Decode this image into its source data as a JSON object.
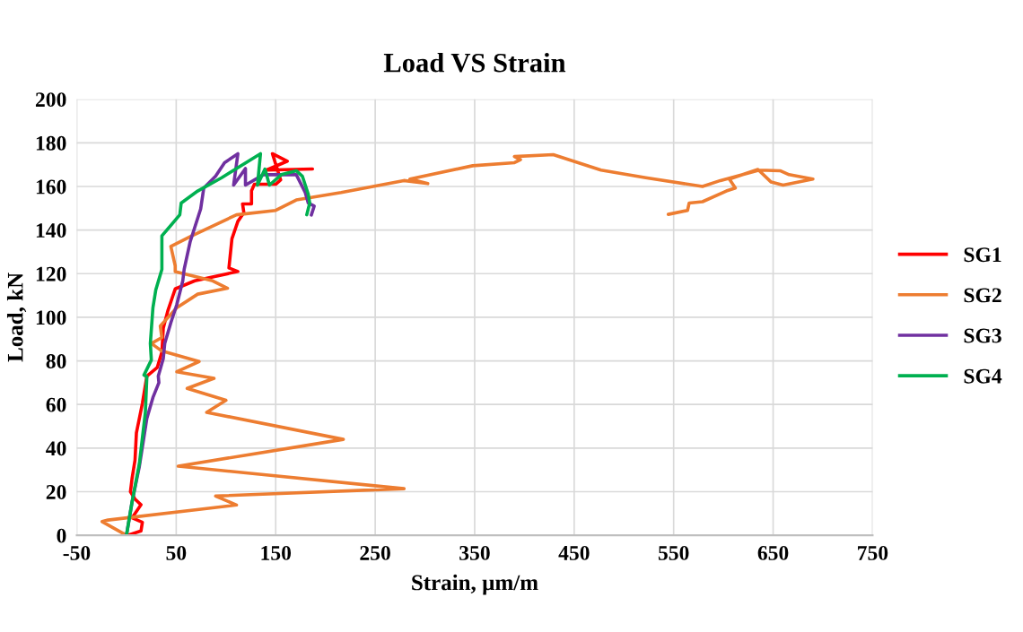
{
  "chart_data": {
    "type": "line",
    "title": "Load VS Strain",
    "xlabel": "Strain, µm/m",
    "ylabel": "Load, kN",
    "xlim": [
      -50,
      750
    ],
    "xticks": [
      -50,
      50,
      150,
      250,
      350,
      450,
      550,
      650,
      750
    ],
    "ylim": [
      0,
      200
    ],
    "yticks": [
      0,
      20,
      40,
      60,
      80,
      100,
      120,
      140,
      160,
      180,
      200
    ],
    "grid": true,
    "legend": "right",
    "marker": "none",
    "line_style": "solid",
    "series": [
      {
        "name": "SG1",
        "color": "#ff0000",
        "x": [
          1,
          14.6,
          16,
          5.6,
          14.6,
          8.6,
          4,
          5.6,
          8.6,
          10,
          16,
          20.5,
          31,
          35.6,
          37,
          41.6,
          49,
          68.6,
          112,
          103,
          106,
          112,
          118,
          116.7,
          125.7,
          125.7,
          128.6,
          150,
          155,
          146.7,
          161.7,
          140.7,
          187
        ],
        "values": [
          0,
          2,
          6,
          8,
          14,
          16.6,
          20,
          26,
          34.5,
          47,
          60.5,
          73,
          77,
          84,
          95,
          103,
          113,
          116.7,
          121,
          122.6,
          136,
          144,
          148,
          152,
          152,
          158,
          161,
          161,
          163,
          175,
          171.6,
          167.5,
          168
        ]
      },
      {
        "name": "SG2",
        "color": "#ed7d31",
        "x": [
          0,
          -24.5,
          -18.5,
          110.6,
          89.6,
          279,
          52,
          218,
          80.6,
          100,
          61,
          88,
          50.6,
          73,
          35.6,
          25,
          35.6,
          34,
          50.6,
          71.6,
          101.6,
          86.7,
          49,
          49,
          44.6,
          65.6,
          110.6,
          150,
          170.7,
          215.8,
          278.8,
          302.9,
          284.9,
          348,
          390,
          396,
          390,
          429,
          477,
          522,
          579,
          597,
          636,
          657,
          666,
          690,
          660,
          648,
          634.7,
          606,
          612,
          603,
          579,
          565.6,
          564,
          544.6
        ],
        "values": [
          0,
          6.3,
          7,
          13.9,
          18,
          21.4,
          31.7,
          44,
          56.4,
          61.9,
          67.4,
          72,
          75,
          79.7,
          84.5,
          88,
          90.7,
          96,
          104.4,
          110.6,
          113.3,
          116.7,
          120.9,
          123.6,
          132.5,
          137.3,
          147,
          149,
          153.8,
          157.2,
          162.7,
          161.3,
          163.4,
          169.5,
          170.9,
          172.3,
          173.7,
          174.6,
          167.5,
          164,
          160,
          162.7,
          167.5,
          167.2,
          165.4,
          163.4,
          160.6,
          162,
          167.8,
          163.4,
          159.3,
          157.9,
          153,
          152.4,
          149,
          147.2
        ]
      },
      {
        "name": "SG3",
        "color": "#7030a0",
        "x": [
          0,
          5.6,
          13,
          20.5,
          26.6,
          32.6,
          32,
          37,
          38.5,
          44.6,
          50.6,
          56.6,
          58,
          64,
          74.6,
          77.7,
          89.6,
          98.6,
          112,
          107.7,
          119.6,
          119.6,
          137.6,
          170.7,
          179.7,
          182.7,
          188.7,
          185.8
        ],
        "values": [
          0,
          15.2,
          31.7,
          53.6,
          63.2,
          70,
          73,
          81,
          88,
          97.5,
          105.8,
          116.7,
          122,
          134.6,
          149.7,
          159.3,
          164.7,
          170.9,
          175,
          160.6,
          168.2,
          160.6,
          165.4,
          165.4,
          157.2,
          152.4,
          151,
          146.9
        ]
      },
      {
        "name": "SG4",
        "color": "#00b050",
        "x": [
          0,
          5.6,
          13,
          19,
          20.5,
          17.6,
          25,
          24,
          26.6,
          29.5,
          35.6,
          35.6,
          53.6,
          55,
          71.6,
          95.7,
          134.7,
          131.7,
          139.2,
          143.7,
          155.7,
          170.7,
          176.8,
          182.7,
          184.2,
          181.2
        ],
        "values": [
          0,
          15.2,
          33,
          56.4,
          72.8,
          73.5,
          80.4,
          88,
          104.4,
          112.6,
          122,
          137.3,
          147,
          152.4,
          157.9,
          164,
          175,
          160.6,
          168,
          160.6,
          165.4,
          167.2,
          164.7,
          156.5,
          152.4,
          147
        ]
      }
    ]
  }
}
